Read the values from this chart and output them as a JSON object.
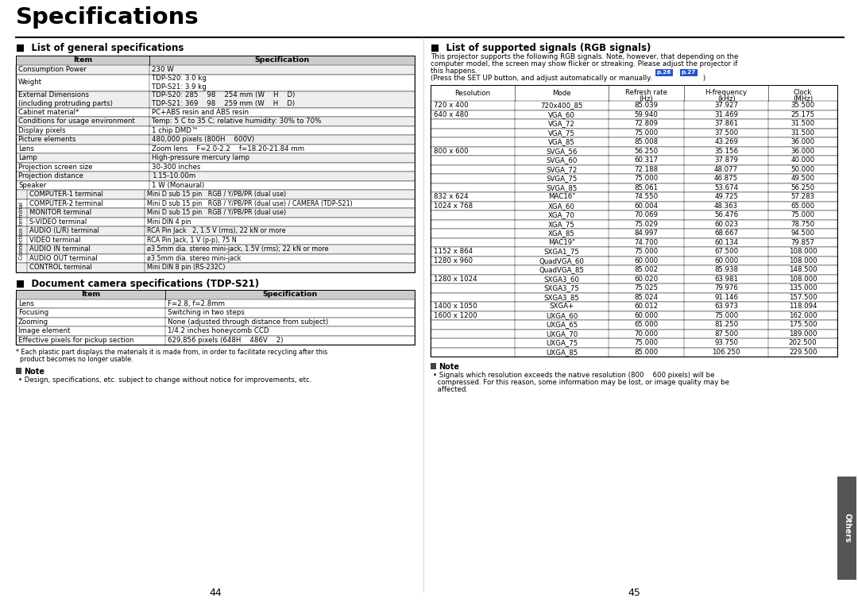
{
  "title": "Specifications",
  "page_bg": "#ffffff",
  "left_section_title": "List of general specifications",
  "right_section_title": "List of supported signals (RGB signals)",
  "doc_cam_title": "Document camera specifications (TDP-S21)",
  "general_specs": [
    [
      "Consumption Power",
      "230 W"
    ],
    [
      "Weight",
      "TDP-S20: 3.0 kg\nTDP-S21: 3.9 kg"
    ],
    [
      "External Dimensions\n(including protruding parts)",
      "TDP-S20: 285    98    254 mm (W    H    D)\nTDP-S21: 369    98    259 mm (W    H    D)"
    ],
    [
      "Cabinet material*",
      "PC+ABS resin and ABS resin"
    ],
    [
      "Conditions for usage environment",
      "Temp: 5 C to 35 C; relative humidity: 30% to 70%"
    ],
    [
      "Display pixels",
      "1 chip DMD™"
    ],
    [
      "Picture elements",
      "480,000 pixels (800H    600V)"
    ],
    [
      "Lens",
      "Zoom lens    F=2.0-2.2    f=18.20-21.84 mm"
    ],
    [
      "Lamp",
      "High-pressure mercury lamp"
    ],
    [
      "Projection screen size",
      "30-300 inches"
    ],
    [
      "Projection distance",
      "1.15-10.00m"
    ],
    [
      "Speaker",
      "1 W (Monaural)"
    ]
  ],
  "connection_terminal_rows": [
    [
      "COMPUTER-1 terminal",
      "Mini D sub 15 pin   RGB / Y/PB/PR (dual use)"
    ],
    [
      "COMPUTER-2 terminal",
      "Mini D sub 15 pin   RGB / Y/PB/PR (dual use) / CAMERA (TDP-S21)"
    ],
    [
      "MONITOR terminal",
      "Mini D sub 15 pin   RGB / Y/PB/PR (dual use)"
    ],
    [
      "S-VIDEO terminal",
      "Mini DIN 4 pin"
    ],
    [
      "AUDIO (L/R) terminal",
      "RCA Pin Jack   2, 1.5 V (rms), 22 kN or more"
    ],
    [
      "VIDEO terminal",
      "RCA Pin Jack, 1 V (p-p), 75 N"
    ],
    [
      "AUDIO IN terminal",
      "ø3.5mm dia. stereo mini-jack, 1.5V (rms); 22 kN or more"
    ],
    [
      "AUDIO OUT terminal",
      "ø3.5mm dia. stereo mini-jack"
    ],
    [
      "CONTROL terminal",
      "Mini DIN 8 pin (RS-232C)"
    ]
  ],
  "doc_cam_specs": [
    [
      "Lens",
      "F=2.8, f=2.8mm"
    ],
    [
      "Focusing",
      "Switching in two steps"
    ],
    [
      "Zooming",
      "None (adjusted through distance from subject)"
    ],
    [
      "Image element",
      "1/4.2 inches honeycomb CCD"
    ],
    [
      "Effective pixels for pickup section",
      "629,856 pixels (648H    486V    2)"
    ]
  ],
  "footnote_line1": "* Each plastic part displays the materials it is made from, in order to facilitate recycling after this",
  "footnote_line2": "  product becomes no longer usable.",
  "note_left": "Design, specifications, etc. subject to change without notice for improvements, etc.",
  "rgb_intro_lines": [
    "This projector supports the following RGB signals. Note, however, that depending on the",
    "computer model, the screen may show flicker or streaking. Please adjust the projector if",
    "this happens.",
    "(Press the SET UP button, and adjust automatically or manually.  p.26  ,  p.27  )"
  ],
  "rgb_table_headers": [
    "Resolution",
    "Mode",
    "Refresh rate\n(Hz)",
    "H-frequency\n(kHz)",
    "Clock\n(MHz)"
  ],
  "rgb_table": [
    [
      "720 x 400",
      "720x400_85",
      "85.039",
      "37.927",
      "35.500"
    ],
    [
      "640 x 480",
      "VGA_60",
      "59.940",
      "31.469",
      "25.175"
    ],
    [
      "",
      "VGA_72",
      "72.809",
      "37.861",
      "31.500"
    ],
    [
      "",
      "VGA_75",
      "75.000",
      "37.500",
      "31.500"
    ],
    [
      "",
      "VGA_85",
      "85.008",
      "43.269",
      "36.000"
    ],
    [
      "800 x 600",
      "SVGA_56",
      "56.250",
      "35.156",
      "36.000"
    ],
    [
      "",
      "SVGA_60",
      "60.317",
      "37.879",
      "40.000"
    ],
    [
      "",
      "SVGA_72",
      "72.188",
      "48.077",
      "50.000"
    ],
    [
      "",
      "SVGA_75",
      "75.000",
      "46.875",
      "49.500"
    ],
    [
      "",
      "SVGA_85",
      "85.061",
      "53.674",
      "56.250"
    ],
    [
      "832 x 624",
      "MAC16\"",
      "74.550",
      "49.725",
      "57.283"
    ],
    [
      "1024 x 768",
      "XGA_60",
      "60.004",
      "48.363",
      "65.000"
    ],
    [
      "",
      "XGA_70",
      "70.069",
      "56.476",
      "75.000"
    ],
    [
      "",
      "XGA_75",
      "75.029",
      "60.023",
      "78.750"
    ],
    [
      "",
      "XGA_85",
      "84.997",
      "68.667",
      "94.500"
    ],
    [
      "",
      "MAC19\"",
      "74.700",
      "60.134",
      "79.857"
    ],
    [
      "1152 x 864",
      "SXGA1_75",
      "75.000",
      "67.500",
      "108.000"
    ],
    [
      "1280 x 960",
      "QuadVGA_60",
      "60.000",
      "60.000",
      "108.000"
    ],
    [
      "",
      "QuadVGA_85",
      "85.002",
      "85.938",
      "148.500"
    ],
    [
      "1280 x 1024",
      "SXGA3_60",
      "60.020",
      "63.981",
      "108.000"
    ],
    [
      "",
      "SXGA3_75",
      "75.025",
      "79.976",
      "135.000"
    ],
    [
      "",
      "SXGA3_85",
      "85.024",
      "91.146",
      "157.500"
    ],
    [
      "1400 x 1050",
      "SXGA+",
      "60.012",
      "63.973",
      "118.094"
    ],
    [
      "1600 x 1200",
      "UXGA_60",
      "60.000",
      "75.000",
      "162.000"
    ],
    [
      "",
      "UXGA_65",
      "65.000",
      "81.250",
      "175.500"
    ],
    [
      "",
      "UXGA_70",
      "70.000",
      "87.500",
      "189.000"
    ],
    [
      "",
      "UXGA_75",
      "75.000",
      "93.750",
      "202.500"
    ],
    [
      "",
      "UXGA_85",
      "85.000",
      "106.250",
      "229.500"
    ]
  ],
  "note_right_lines": [
    "• Signals which resolution exceeds the native resolution (800    600 pixels) will be",
    "  compressed. For this reason, some information may be lost, or image quality may be",
    "  affected."
  ],
  "page_numbers": [
    "44",
    "45"
  ]
}
